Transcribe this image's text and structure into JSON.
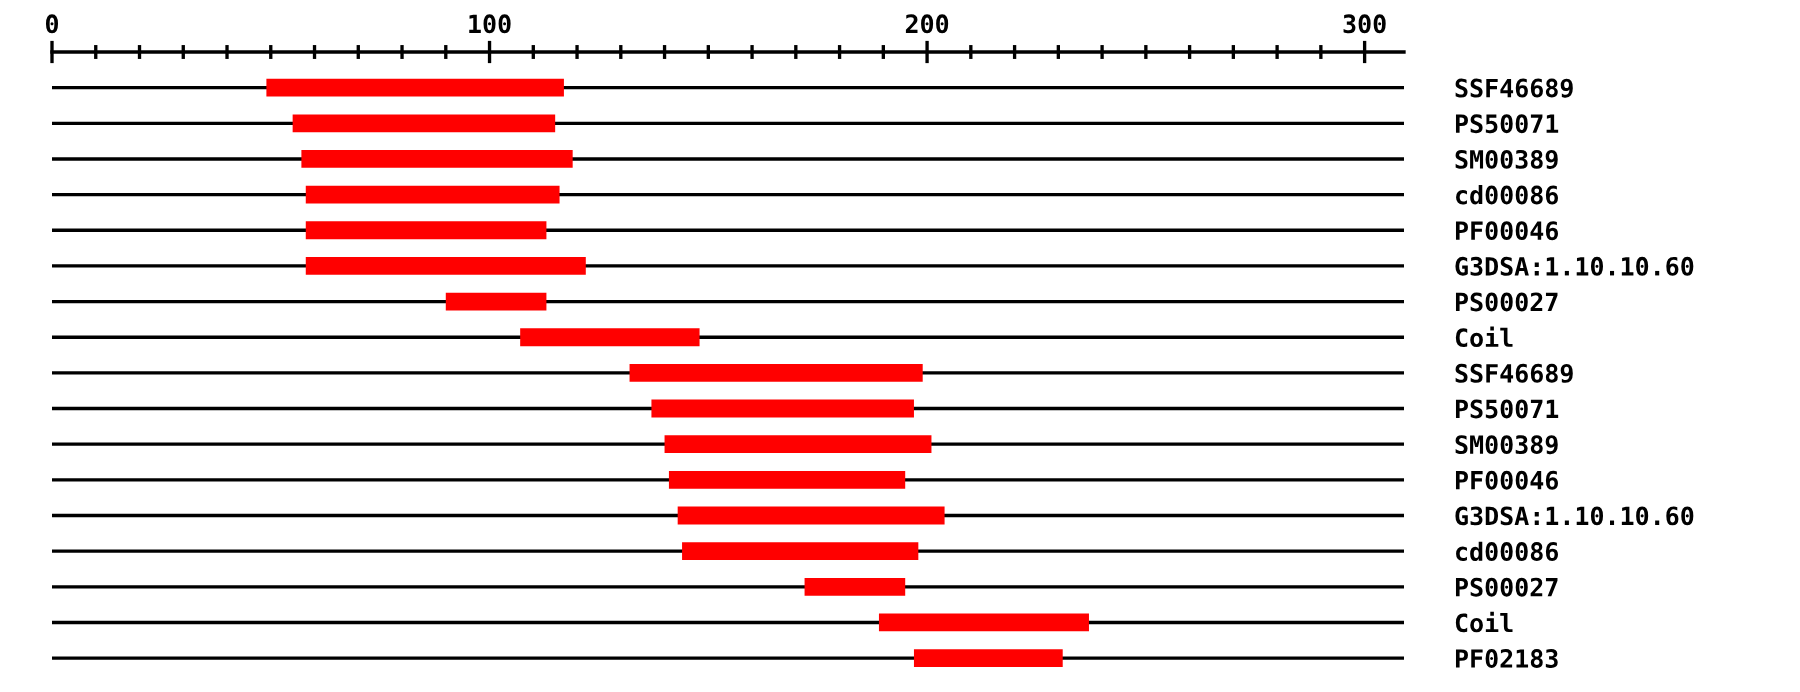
{
  "chart_data": {
    "type": "bar",
    "orientation": "horizontal",
    "categories": [
      "SSF46689",
      "PS50071",
      "SM00389",
      "cd00086",
      "PF00046",
      "G3DSA:1.10.10.60",
      "PS00027",
      "Coil",
      "SSF46689",
      "PS50071",
      "SM00389",
      "PF00046",
      "G3DSA:1.10.10.60",
      "cd00086",
      "PS00027",
      "Coil",
      "PF02183"
    ],
    "base": [
      49,
      55,
      57,
      58,
      58,
      58,
      90,
      107,
      132,
      137,
      140,
      141,
      143,
      144,
      172,
      189,
      197
    ],
    "values": [
      68,
      60,
      62,
      58,
      55,
      64,
      23,
      41,
      67,
      60,
      61,
      54,
      61,
      54,
      23,
      48,
      34
    ],
    "color": "#ff0000",
    "xlim": [
      0,
      309
    ],
    "xticks": [
      0,
      {
        "value": 10,
        "label": null
      },
      {
        "value": 20,
        "label": null
      },
      {
        "value": 30,
        "label": null
      },
      {
        "value": 40,
        "label": null
      },
      {
        "value": 50,
        "label": null
      },
      {
        "value": 60,
        "label": null
      },
      {
        "value": 70,
        "label": null
      },
      {
        "value": 80,
        "label": null
      },
      {
        "value": 90,
        "label": null
      },
      100,
      {
        "value": 110,
        "label": null
      },
      {
        "value": 120,
        "label": null
      },
      {
        "value": 130,
        "label": null
      },
      {
        "value": 140,
        "label": null
      },
      {
        "value": 150,
        "label": null
      },
      {
        "value": 160,
        "label": null
      },
      {
        "value": 170,
        "label": null
      },
      {
        "value": 180,
        "label": null
      },
      {
        "value": 190,
        "label": null
      },
      200,
      {
        "value": 210,
        "label": null
      },
      {
        "value": 220,
        "label": null
      },
      {
        "value": 230,
        "label": null
      },
      {
        "value": 240,
        "label": null
      },
      {
        "value": 250,
        "label": null
      },
      {
        "value": 260,
        "label": null
      },
      {
        "value": 270,
        "label": null
      },
      {
        "value": 280,
        "label": null
      },
      {
        "value": 290,
        "label": null
      },
      300
    ],
    "grid": "y"
  }
}
